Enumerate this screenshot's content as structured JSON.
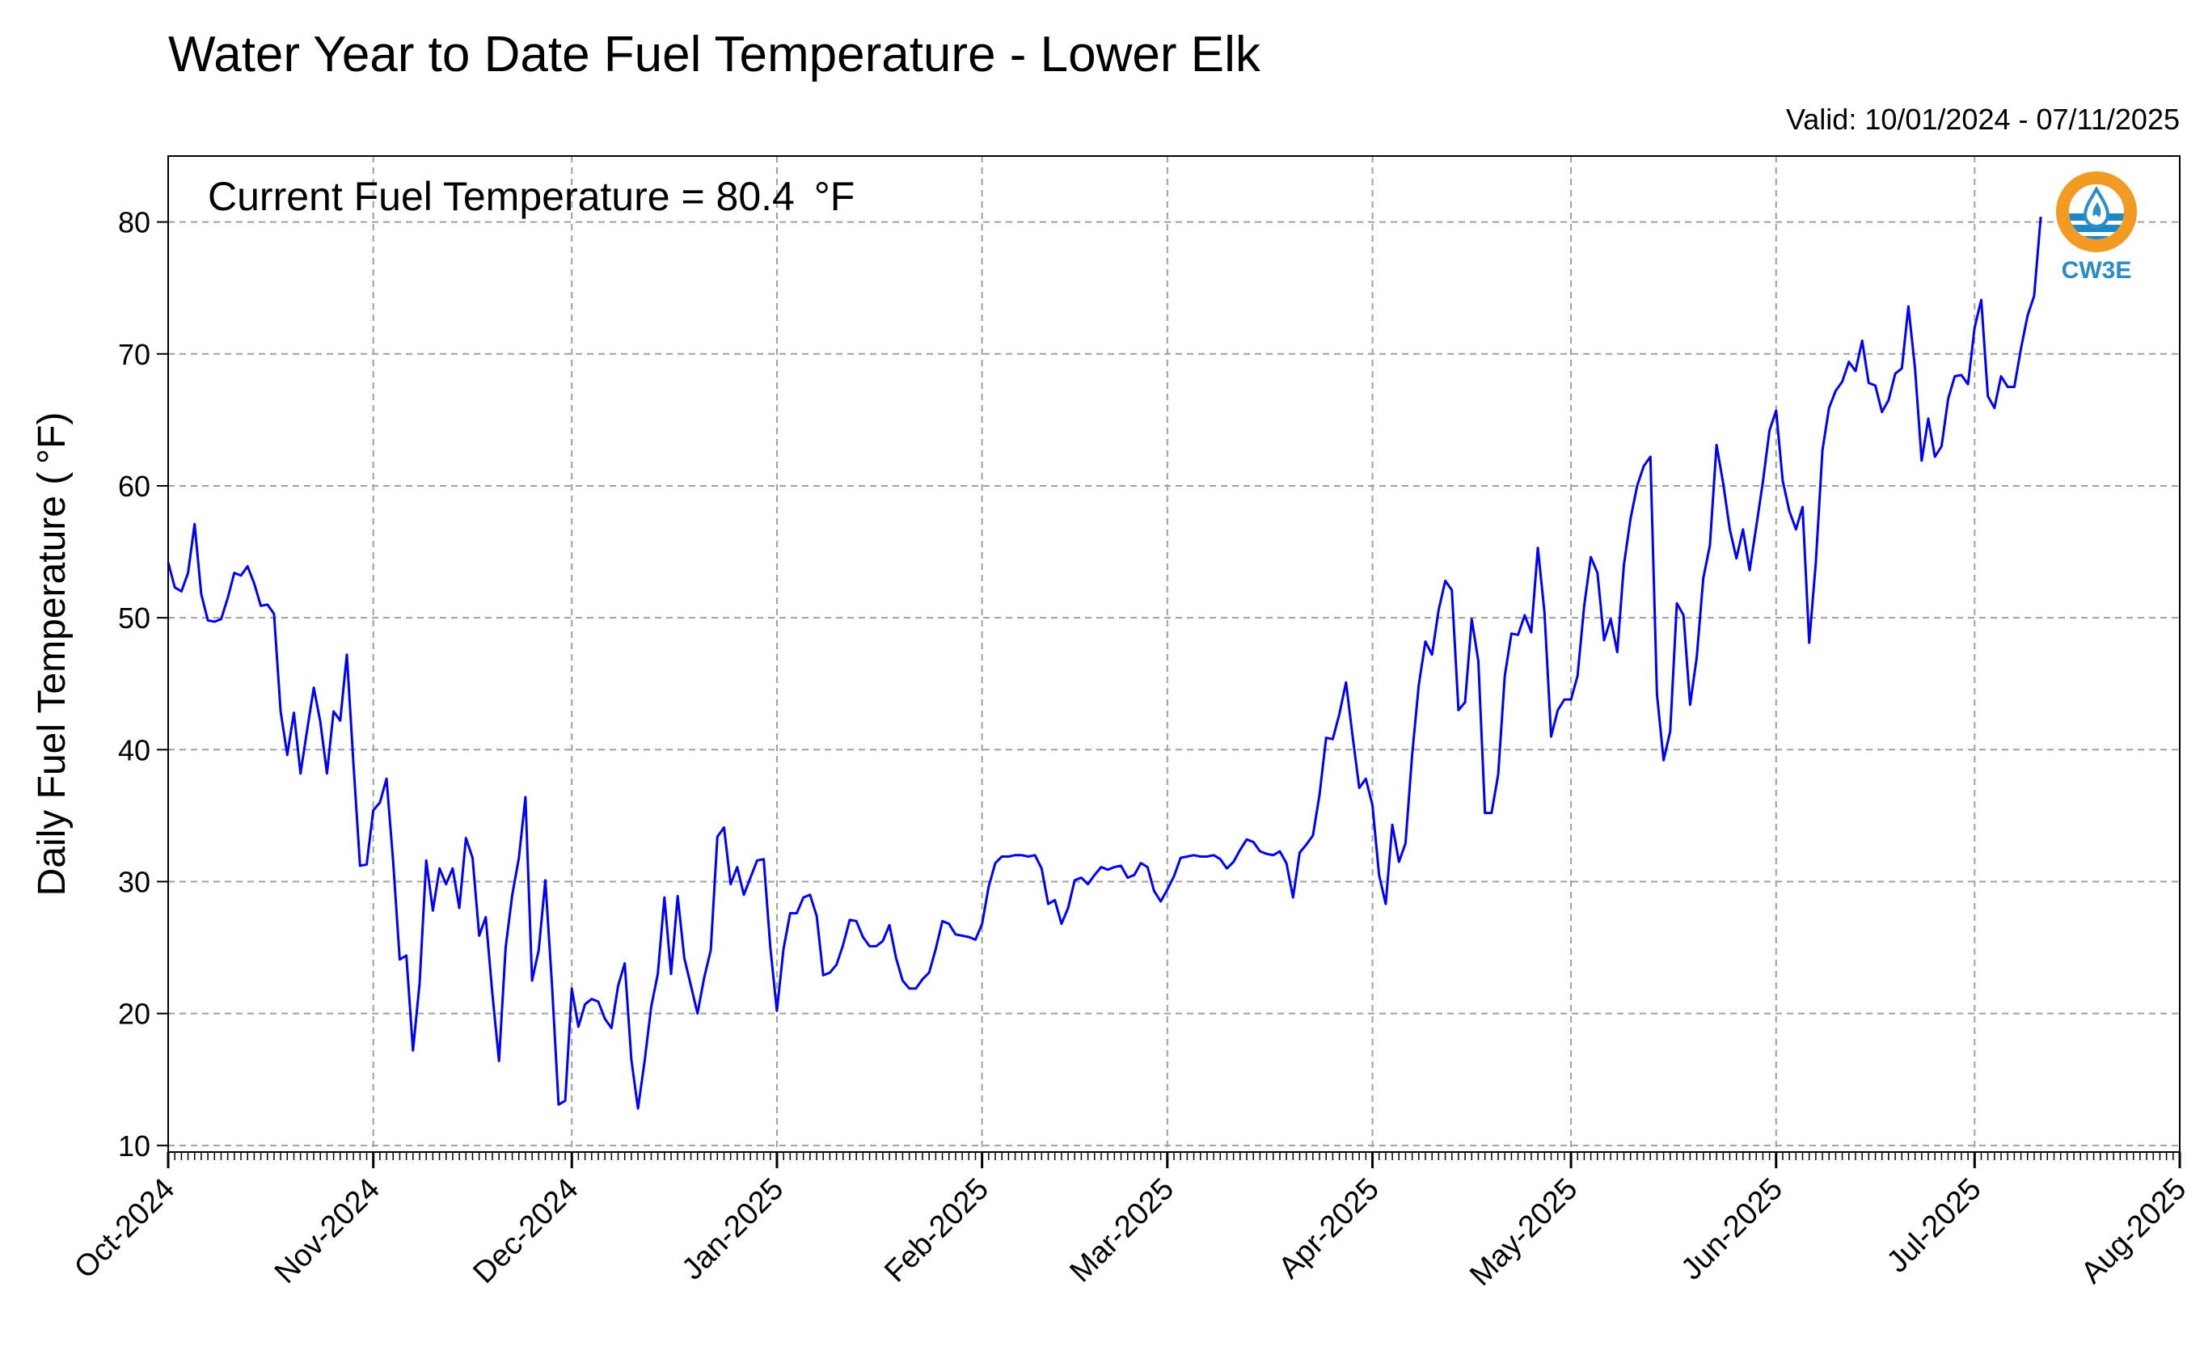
{
  "chart_data": {
    "type": "line",
    "title": "Water Year to Date Fuel Temperature - Lower Elk",
    "subtitle": "Valid: 10/01/2024 - 07/11/2025",
    "annotation": "Current Fuel Temperature = 80.4  °F",
    "ylabel": "Daily Fuel Temperature ( °F)",
    "xlabel": "",
    "ylim": [
      9.5,
      85
    ],
    "yticks": [
      10,
      20,
      30,
      40,
      50,
      60,
      70,
      80
    ],
    "x_axis_start": "2024-10-01",
    "x_axis_end": "2025-08-01",
    "xticks": [
      {
        "date": "2024-10-01",
        "label": "Oct-2024"
      },
      {
        "date": "2024-11-01",
        "label": "Nov-2024"
      },
      {
        "date": "2024-12-01",
        "label": "Dec-2024"
      },
      {
        "date": "2025-01-01",
        "label": "Jan-2025"
      },
      {
        "date": "2025-02-01",
        "label": "Feb-2025"
      },
      {
        "date": "2025-03-01",
        "label": "Mar-2025"
      },
      {
        "date": "2025-04-01",
        "label": "Apr-2025"
      },
      {
        "date": "2025-05-01",
        "label": "May-2025"
      },
      {
        "date": "2025-06-01",
        "label": "Jun-2025"
      },
      {
        "date": "2025-07-01",
        "label": "Jul-2025"
      },
      {
        "date": "2025-08-01",
        "label": "Aug-2025"
      }
    ],
    "grid": true,
    "line_color": "#0000ff",
    "series": [
      {
        "name": "",
        "x_start": "2024-10-01",
        "x_step_days": 1,
        "values": [
          54.2,
          52.3,
          52.0,
          53.4,
          57.1,
          51.8,
          49.8,
          49.7,
          49.9,
          51.5,
          53.4,
          53.2,
          53.9,
          52.6,
          50.9,
          51.0,
          50.3,
          42.9,
          39.6,
          42.8,
          38.2,
          41.5,
          44.7,
          42.1,
          38.2,
          42.9,
          42.2,
          47.2,
          38.9,
          31.2,
          31.3,
          35.4,
          36.0,
          37.8,
          31.5,
          24.1,
          24.4,
          17.2,
          22.3,
          31.6,
          27.8,
          31.0,
          29.8,
          31.0,
          28.0,
          33.3,
          31.8,
          25.9,
          27.3,
          21.5,
          16.4,
          25.0,
          29.0,
          31.8,
          36.4,
          22.5,
          24.8,
          30.1,
          22.2,
          13.1,
          13.4,
          21.9,
          19.0,
          20.7,
          21.1,
          20.9,
          19.6,
          18.9,
          22.1,
          23.8,
          16.5,
          12.8,
          16.4,
          20.5,
          23.0,
          28.8,
          23.0,
          28.9,
          24.2,
          22.1,
          20.0,
          22.7,
          24.8,
          33.4,
          34.1,
          29.8,
          31.1,
          29.0,
          30.3,
          31.6,
          31.7,
          25.0,
          20.2,
          24.9,
          27.6,
          27.6,
          28.8,
          29.0,
          27.4,
          22.9,
          23.1,
          23.7,
          25.2,
          27.1,
          27.0,
          25.8,
          25.1,
          25.1,
          25.5,
          26.7,
          24.2,
          22.5,
          21.9,
          21.9,
          22.6,
          23.1,
          24.9,
          27.0,
          26.8,
          26.0,
          25.9,
          25.8,
          25.6,
          26.8,
          29.6,
          31.4,
          31.9,
          31.9,
          32.0,
          32.0,
          31.9,
          32.0,
          31.0,
          28.3,
          28.6,
          26.8,
          28.0,
          30.1,
          30.3,
          29.8,
          30.5,
          31.1,
          30.9,
          31.1,
          31.2,
          30.3,
          30.5,
          31.4,
          31.1,
          29.3,
          28.5,
          29.4,
          30.4,
          31.8,
          31.9,
          32.0,
          31.9,
          31.9,
          32.0,
          31.7,
          31.0,
          31.5,
          32.4,
          33.2,
          33.0,
          32.3,
          32.1,
          32.0,
          32.3,
          31.4,
          28.8,
          32.2,
          32.8,
          33.5,
          36.6,
          40.9,
          40.8,
          42.7,
          45.1,
          41.0,
          37.1,
          37.8,
          35.8,
          30.5,
          28.3,
          34.3,
          31.5,
          32.9,
          39.6,
          44.9,
          48.2,
          47.2,
          50.6,
          52.8,
          52.1,
          43.0,
          43.6,
          49.9,
          46.7,
          35.2,
          35.2,
          38.1,
          45.6,
          48.8,
          48.7,
          50.2,
          48.9,
          55.3,
          50.4,
          41.0,
          43.0,
          43.8,
          43.8,
          45.6,
          50.9,
          54.6,
          53.4,
          48.3,
          49.9,
          47.4,
          54.0,
          57.5,
          60.0,
          61.5,
          62.2,
          44.2,
          39.2,
          41.4,
          51.1,
          50.2,
          43.4,
          47.0,
          53.0,
          55.5,
          63.1,
          60.2,
          56.7,
          54.5,
          56.7,
          53.6,
          56.9,
          60.3,
          64.2,
          65.7,
          60.4,
          58.1,
          56.7,
          58.4,
          48.1,
          54.2,
          62.7,
          65.9,
          67.2,
          67.9,
          69.4,
          68.7,
          71.0,
          67.8,
          67.6,
          65.6,
          66.5,
          68.5,
          68.9,
          73.6,
          68.9,
          61.9,
          65.1,
          62.2,
          63.0,
          66.6,
          68.3,
          68.4,
          67.7,
          72.0,
          74.1,
          66.8,
          65.9,
          68.3,
          67.5,
          67.5,
          70.4,
          72.9,
          74.4,
          80.4
        ]
      }
    ]
  },
  "logo": {
    "text": "CW3E",
    "ring_color": "#f29a23",
    "wave_color": "#1f88c4",
    "drop_color": "#2b8fc7"
  }
}
